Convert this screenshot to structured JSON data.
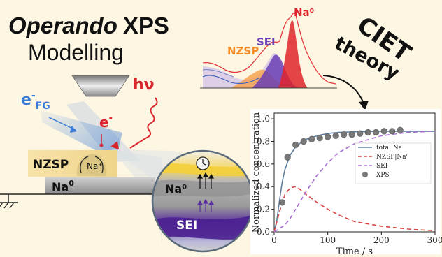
{
  "title": {
    "line1_italic": "Operando",
    "line1_bold": "XPS",
    "line2": "Modelling"
  },
  "spectrum_labels": {
    "nzsp": "NZSP",
    "sei": "SEI",
    "na0": "Na⁰"
  },
  "theory": {
    "line1": "CIET",
    "line2": "theory"
  },
  "schematic": {
    "efg_base": "e",
    "efg_sup": "-",
    "efg_sub": "FG",
    "hv": "hν",
    "e_base": "e",
    "e_sup": "-",
    "nzsp": "NZSP",
    "na_plus": "Na⁺",
    "na0_base": "Na",
    "na0_sup": "0",
    "zoom_na0": "Na⁰",
    "zoom_sei": "SEI"
  },
  "colors": {
    "nzsp_orange": "#f28c28",
    "sei_purple": "#6a3fb5",
    "na0_red": "#e0242c",
    "efg_blue": "#3a7bd5",
    "hv_red": "#d9262c",
    "background": "#fdf6e3"
  },
  "chart_data": {
    "type": "line",
    "xlabel": "Time / s",
    "ylabel": "Normalized concentration",
    "xlim": [
      0,
      300
    ],
    "ylim": [
      0,
      1.05
    ],
    "xticks": [
      0,
      100,
      200,
      300
    ],
    "yticks": [
      0.0,
      0.2,
      0.4,
      0.6,
      0.8,
      1.0
    ],
    "legend_position": "center-right",
    "series": [
      {
        "name": "total Na",
        "style": "solid",
        "color": "#5f7fa0",
        "x": [
          0,
          5,
          10,
          15,
          20,
          30,
          40,
          50,
          60,
          80,
          100,
          120,
          150,
          200,
          250,
          300
        ],
        "y": [
          0.0,
          0.1,
          0.28,
          0.44,
          0.55,
          0.68,
          0.75,
          0.79,
          0.82,
          0.85,
          0.87,
          0.88,
          0.885,
          0.89,
          0.89,
          0.89
        ]
      },
      {
        "name": "NZSP|Na⁰",
        "style": "dashed",
        "color": "#d64545",
        "x": [
          0,
          10,
          20,
          30,
          40,
          50,
          60,
          80,
          100,
          120,
          150,
          200,
          250,
          300
        ],
        "y": [
          0.0,
          0.18,
          0.33,
          0.39,
          0.4,
          0.37,
          0.33,
          0.26,
          0.2,
          0.15,
          0.09,
          0.05,
          0.025,
          0.01
        ]
      },
      {
        "name": "SEI",
        "style": "dashed",
        "color": "#a86ed6",
        "x": [
          0,
          20,
          30,
          40,
          60,
          80,
          100,
          120,
          150,
          200,
          250,
          300
        ],
        "y": [
          0.0,
          0.06,
          0.12,
          0.2,
          0.36,
          0.5,
          0.61,
          0.7,
          0.78,
          0.85,
          0.88,
          0.89
        ]
      },
      {
        "name": "XPS",
        "style": "marker",
        "color": "#777777",
        "x": [
          15,
          25,
          40,
          55,
          70,
          85,
          100,
          115,
          130,
          145,
          160,
          175,
          190,
          205,
          220,
          235
        ],
        "y": [
          0.26,
          0.66,
          0.77,
          0.8,
          0.82,
          0.83,
          0.84,
          0.85,
          0.86,
          0.86,
          0.87,
          0.88,
          0.88,
          0.89,
          0.89,
          0.9
        ]
      }
    ]
  }
}
